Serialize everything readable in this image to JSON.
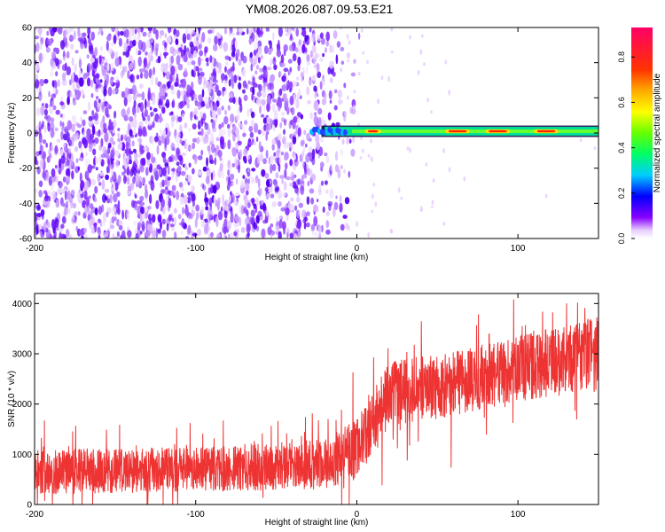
{
  "title": "YM08.2026.087.09.53.E21",
  "chart_data": [
    {
      "type": "heatmap",
      "name": "spectrogram",
      "xlabel": "Height of straight line (km)",
      "ylabel": "Frequency (Hz)",
      "xlim": [
        -200,
        150
      ],
      "ylim": [
        -60,
        60
      ],
      "xticks": [
        -200,
        -100,
        0,
        100
      ],
      "yticks": [
        -60,
        -40,
        -20,
        0,
        20,
        40,
        60
      ],
      "signal_band": {
        "x_start": -28,
        "x_end": 150,
        "freq_center": 1,
        "freq_halfwidth": 2.5,
        "peak_regions_x": [
          [
            5,
            15
          ],
          [
            55,
            70
          ],
          [
            80,
            95
          ],
          [
            110,
            125
          ]
        ]
      },
      "noise_region_x": [
        -200,
        -20
      ],
      "colorbar": {
        "label": "Normalized spectral amplitude",
        "ticks": [
          0.0,
          0.2,
          0.4,
          0.6,
          0.8
        ],
        "range": [
          0,
          0.93
        ]
      }
    },
    {
      "type": "line",
      "name": "snr",
      "xlabel": "Height of straight line (km)",
      "ylabel": "SNR (10 * v/v)",
      "xlim": [
        -200,
        150
      ],
      "ylim": [
        0,
        4200
      ],
      "xticks": [
        -200,
        -100,
        0,
        100
      ],
      "yticks": [
        0,
        1000,
        2000,
        3000,
        4000
      ],
      "color": "#ee3333",
      "trend": [
        {
          "x": -200,
          "mean": 650,
          "spread": 450
        },
        {
          "x": -100,
          "mean": 700,
          "spread": 450
        },
        {
          "x": -20,
          "mean": 800,
          "spread": 500
        },
        {
          "x": 0,
          "mean": 1100,
          "spread": 600
        },
        {
          "x": 10,
          "mean": 1600,
          "spread": 650
        },
        {
          "x": 20,
          "mean": 2200,
          "spread": 650
        },
        {
          "x": 60,
          "mean": 2400,
          "spread": 650
        },
        {
          "x": 100,
          "mean": 2700,
          "spread": 650
        },
        {
          "x": 150,
          "mean": 3000,
          "spread": 750
        }
      ]
    }
  ]
}
